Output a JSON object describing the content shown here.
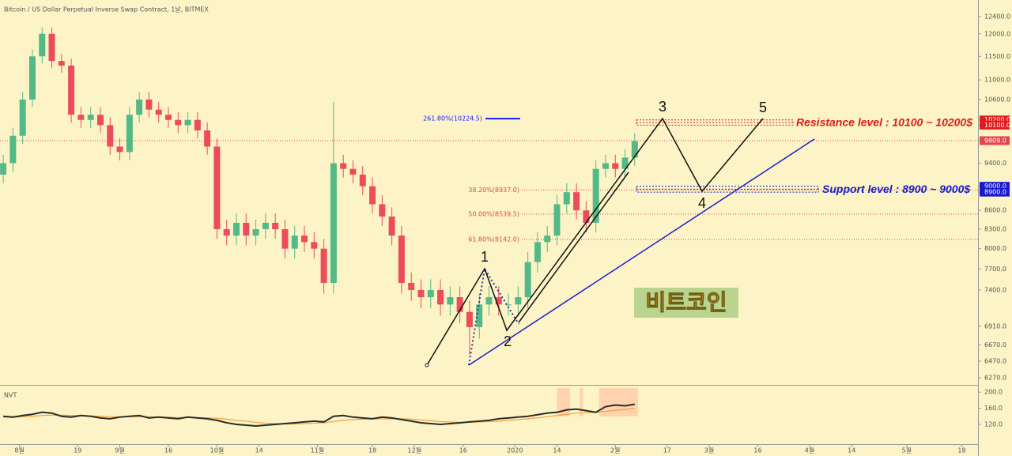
{
  "chart_data": {
    "type": "candlestick",
    "title": "Bitcoin / US Dollar Perpetual Inverse Swap Contract, 1날, BITMEX",
    "x": [
      -5,
      -2,
      1,
      4,
      7,
      10,
      13,
      16,
      19,
      22,
      25,
      28,
      31,
      34,
      37,
      40,
      43,
      46,
      49,
      52,
      55,
      58,
      61,
      64,
      67,
      70,
      73,
      76,
      79,
      82,
      85,
      88,
      91,
      94,
      97,
      100,
      103,
      106,
      109,
      112,
      115,
      118,
      121,
      124,
      127,
      130,
      133,
      136,
      139,
      142,
      145,
      148,
      151,
      154,
      157,
      160,
      163,
      166,
      169,
      172,
      175,
      178,
      181,
      184,
      187,
      190
    ],
    "open": [
      9200,
      9400,
      9900,
      10600,
      11500,
      12000,
      11400,
      11300,
      10300,
      10200,
      10300,
      10100,
      9700,
      9600,
      10300,
      10600,
      10400,
      10300,
      10200,
      10100,
      10200,
      10000,
      9700,
      8300,
      8200,
      8400,
      8200,
      8300,
      8400,
      8300,
      8000,
      8200,
      8100,
      8000,
      7500,
      9400,
      9300,
      9200,
      9000,
      8700,
      8500,
      8200,
      7500,
      7400,
      7300,
      7400,
      7200,
      7300,
      7100,
      6900,
      7200,
      7300,
      7200,
      7200,
      7300,
      7800,
      8100,
      8200,
      8700,
      8900,
      8600,
      8400,
      9300,
      9400,
      9300,
      9500
    ],
    "high": [
      9550,
      10050,
      10750,
      11650,
      12150,
      12150,
      11550,
      11450,
      10450,
      10450,
      10450,
      10250,
      9850,
      10450,
      10750,
      10750,
      10550,
      10450,
      10350,
      10350,
      10350,
      10150,
      9850,
      8450,
      8550,
      8550,
      8450,
      8550,
      8550,
      8450,
      8350,
      8350,
      8250,
      8150,
      10550,
      9550,
      9450,
      9350,
      9150,
      8850,
      8650,
      8350,
      7650,
      7550,
      7550,
      7550,
      7450,
      7450,
      7250,
      7350,
      7450,
      7450,
      7350,
      7450,
      7950,
      8250,
      8350,
      8850,
      9050,
      9050,
      8750,
      9450,
      9550,
      9550,
      9650,
      9950
    ],
    "low": [
      9050,
      9250,
      9750,
      10450,
      11350,
      11250,
      11150,
      10150,
      10050,
      10050,
      9950,
      9550,
      9450,
      9450,
      10150,
      10250,
      10150,
      10050,
      9950,
      9950,
      9850,
      9550,
      8150,
      8050,
      8050,
      8050,
      8050,
      8150,
      8150,
      7850,
      7850,
      7950,
      7850,
      7350,
      7350,
      9150,
      9050,
      8850,
      8550,
      8350,
      8050,
      7350,
      7250,
      7150,
      7150,
      7050,
      7050,
      6950,
      6550,
      6750,
      7050,
      7050,
      7050,
      7050,
      7150,
      7650,
      7950,
      8050,
      8550,
      8450,
      8250,
      8250,
      9150,
      9150,
      9150,
      9350
    ],
    "close": [
      9400,
      9900,
      10600,
      11500,
      12000,
      11400,
      11300,
      10300,
      10200,
      10300,
      10100,
      9700,
      9600,
      10300,
      10600,
      10400,
      10300,
      10200,
      10100,
      10200,
      10000,
      9700,
      8300,
      8200,
      8400,
      8200,
      8300,
      8400,
      8300,
      8000,
      8200,
      8100,
      8000,
      7500,
      9400,
      9300,
      9200,
      9000,
      8700,
      8500,
      8200,
      7500,
      7400,
      7300,
      7400,
      7200,
      7300,
      7100,
      6900,
      7200,
      7300,
      7200,
      7200,
      7300,
      7800,
      8100,
      8200,
      8700,
      8900,
      8600,
      8400,
      9300,
      9400,
      9300,
      9500,
      9800
    ],
    "up_color": "#53b987",
    "down_color": "#eb4d5c",
    "xlim": [
      -6,
      296
    ],
    "xticks": [
      {
        "value": 0,
        "label": "8월"
      },
      {
        "value": 18,
        "label": "19"
      },
      {
        "value": 31,
        "label": "9월"
      },
      {
        "value": 46,
        "label": "16"
      },
      {
        "value": 61,
        "label": "10월"
      },
      {
        "value": 74,
        "label": "14"
      },
      {
        "value": 92,
        "label": "11월"
      },
      {
        "value": 109,
        "label": "18"
      },
      {
        "value": 122,
        "label": "12월"
      },
      {
        "value": 137,
        "label": "16"
      },
      {
        "value": 153,
        "label": "2020"
      },
      {
        "value": 166,
        "label": "14"
      },
      {
        "value": 184,
        "label": "2월"
      },
      {
        "value": 200,
        "label": "17"
      },
      {
        "value": 213,
        "label": "3월"
      },
      {
        "value": 228,
        "label": "16"
      },
      {
        "value": 244,
        "label": "4월"
      },
      {
        "value": 257,
        "label": "14"
      },
      {
        "value": 274,
        "label": "5월"
      },
      {
        "value": 291,
        "label": "18"
      }
    ],
    "ylim": [
      6187,
      12790
    ],
    "log_scale": true,
    "yticks": [
      {
        "value": 12400,
        "label": "12400.0"
      },
      {
        "value": 12000,
        "label": "12000.0"
      },
      {
        "value": 11500,
        "label": "11500.0"
      },
      {
        "value": 11000,
        "label": "11000.0"
      },
      {
        "value": 10600,
        "label": "10600.0"
      },
      {
        "value": 10200,
        "label": "10200.0"
      },
      {
        "value": 10100,
        "label": "10100.0"
      },
      {
        "value": 9400,
        "label": "9400.0"
      },
      {
        "value": 9000,
        "label": "9000.0"
      },
      {
        "value": 8900,
        "label": "8900.0"
      },
      {
        "value": 8600,
        "label": "8600.0"
      },
      {
        "value": 8300,
        "label": "8300.0"
      },
      {
        "value": 8000,
        "label": "8000.0"
      },
      {
        "value": 7700,
        "label": "7700.0"
      },
      {
        "value": 7400,
        "label": "7400.0"
      },
      {
        "value": 6910,
        "label": "6910.0"
      },
      {
        "value": 6670,
        "label": "6670.0"
      },
      {
        "value": 6470,
        "label": "6470.0"
      },
      {
        "value": 6270,
        "label": "6270.0"
      }
    ],
    "last_price": {
      "value": 9809,
      "label": "9809.0",
      "color": "#e0474c"
    },
    "fib_levels": [
      {
        "label": "261.80%(10224.5)",
        "value": 10224.5,
        "color": "#1a1aff"
      },
      {
        "label": "38.20%(8937.0)",
        "value": 8937,
        "color": "#e0474c"
      },
      {
        "label": "50.00%(8539.5)",
        "value": 8539.5,
        "color": "#e0474c"
      },
      {
        "label": "61.80%(8142.0)",
        "value": 8142,
        "color": "#e0474c"
      }
    ],
    "zones": [
      {
        "label": "Resistance level : 10100 ~ 10200$",
        "range": [
          10100,
          10200
        ],
        "color": "#e01b1b"
      },
      {
        "label": "Support level : 8900 ~ 9000$",
        "range": [
          8900,
          9000
        ],
        "color": "#1a1acc"
      }
    ],
    "waves": [
      "1",
      "2",
      "3",
      "4",
      "5"
    ],
    "watermark": "비트코인",
    "indicator": {
      "name": "NVT",
      "type": "line",
      "series": [
        {
          "color": "#2b2b2b",
          "values": [
            140,
            138,
            142,
            145,
            150,
            148,
            140,
            138,
            142,
            140,
            136,
            134,
            138,
            140,
            142,
            136,
            138,
            136,
            134,
            138,
            136,
            134,
            130,
            124,
            120,
            118,
            116,
            118,
            120,
            122,
            124,
            126,
            128,
            126,
            140,
            142,
            138,
            136,
            134,
            138,
            136,
            132,
            128,
            124,
            122,
            120,
            122,
            124,
            126,
            128,
            130,
            134,
            136,
            138,
            140,
            144,
            148,
            150,
            156,
            158,
            154,
            150,
            164,
            168,
            166,
            170
          ]
        },
        {
          "color": "#f5a03a",
          "values": [
            138,
            138,
            139,
            140,
            142,
            143,
            143,
            142,
            142,
            141,
            140,
            139,
            139,
            139,
            139,
            139,
            138,
            138,
            137,
            137,
            137,
            136,
            135,
            133,
            130,
            128,
            125,
            123,
            122,
            121,
            121,
            122,
            123,
            124,
            127,
            130,
            132,
            133,
            134,
            134,
            134,
            134,
            133,
            131,
            129,
            127,
            126,
            125,
            125,
            126,
            127,
            128,
            130,
            132,
            134,
            136,
            139,
            142,
            145,
            148,
            149,
            150,
            152,
            155,
            157,
            160
          ]
        }
      ],
      "ylim": [
        71,
        216
      ],
      "yticks": [
        {
          "value": 120,
          "label": "120.0"
        },
        {
          "value": 160,
          "label": "160.0"
        },
        {
          "value": 200,
          "label": "200.0"
        }
      ],
      "shaded_x": [
        [
          166,
          170
        ],
        [
          173,
          174
        ],
        [
          179,
          191
        ]
      ],
      "shade_color": "#ffd3ad"
    }
  }
}
